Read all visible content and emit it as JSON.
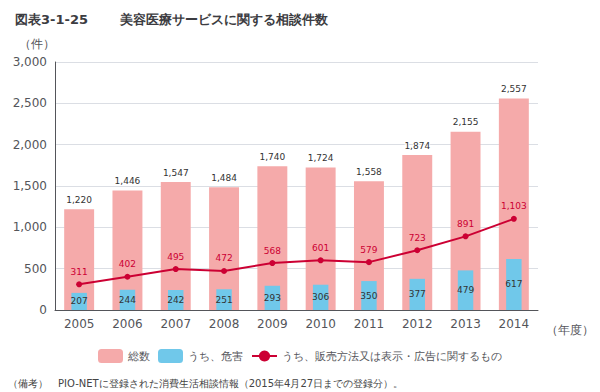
{
  "chart_data": {
    "type": "bar",
    "title": "図表3-1-25",
    "subtitle": "美容医療サービスに関する相談件数",
    "xlabel": "（年度）",
    "ylabel": "（件）",
    "annotations": [
      "（備考）　PIO-NETに登録された消費生活相談情報（2015年4月27日までの登録分）。"
    ],
    "categories": [
      "2005",
      "2006",
      "2007",
      "2008",
      "2009",
      "2010",
      "2011",
      "2012",
      "2013",
      "2014"
    ],
    "series": [
      {
        "name": "総数",
        "type": "bar",
        "color": "#F5AAAA",
        "values": [
          1220,
          1446,
          1547,
          1484,
          1740,
          1724,
          1558,
          1874,
          2155,
          2557
        ],
        "value_labels": [
          "1,220",
          "1,446",
          "1,547",
          "1,484",
          "1,740",
          "1,724",
          "1,558",
          "1,874",
          "2,155",
          "2,557"
        ]
      },
      {
        "name": "うち、危害",
        "type": "bar",
        "color": "#70C8EA",
        "values": [
          207,
          244,
          242,
          251,
          293,
          306,
          350,
          377,
          479,
          617
        ]
      },
      {
        "name": "うち、販売方法又は表示・広告に関するもの",
        "type": "line",
        "color": "#CC0033",
        "marker": "circle",
        "values": [
          311,
          402,
          495,
          472,
          568,
          601,
          579,
          723,
          891,
          1103
        ],
        "value_labels": [
          "311",
          "402",
          "495",
          "472",
          "568",
          "601",
          "579",
          "723",
          "891",
          "1,103"
        ]
      }
    ],
    "ylim": [
      0,
      3000
    ],
    "yticks": [
      0,
      500,
      {
        "value": 1000,
        "label": "1,000"
      },
      {
        "value": 1500,
        "label": "1,500"
      },
      {
        "value": 2000,
        "label": "2,000"
      },
      {
        "value": 2500,
        "label": "2,500"
      },
      {
        "value": 3000,
        "label": "3,000"
      }
    ],
    "grid": true,
    "legend": "bottom",
    "data_labels": true
  }
}
